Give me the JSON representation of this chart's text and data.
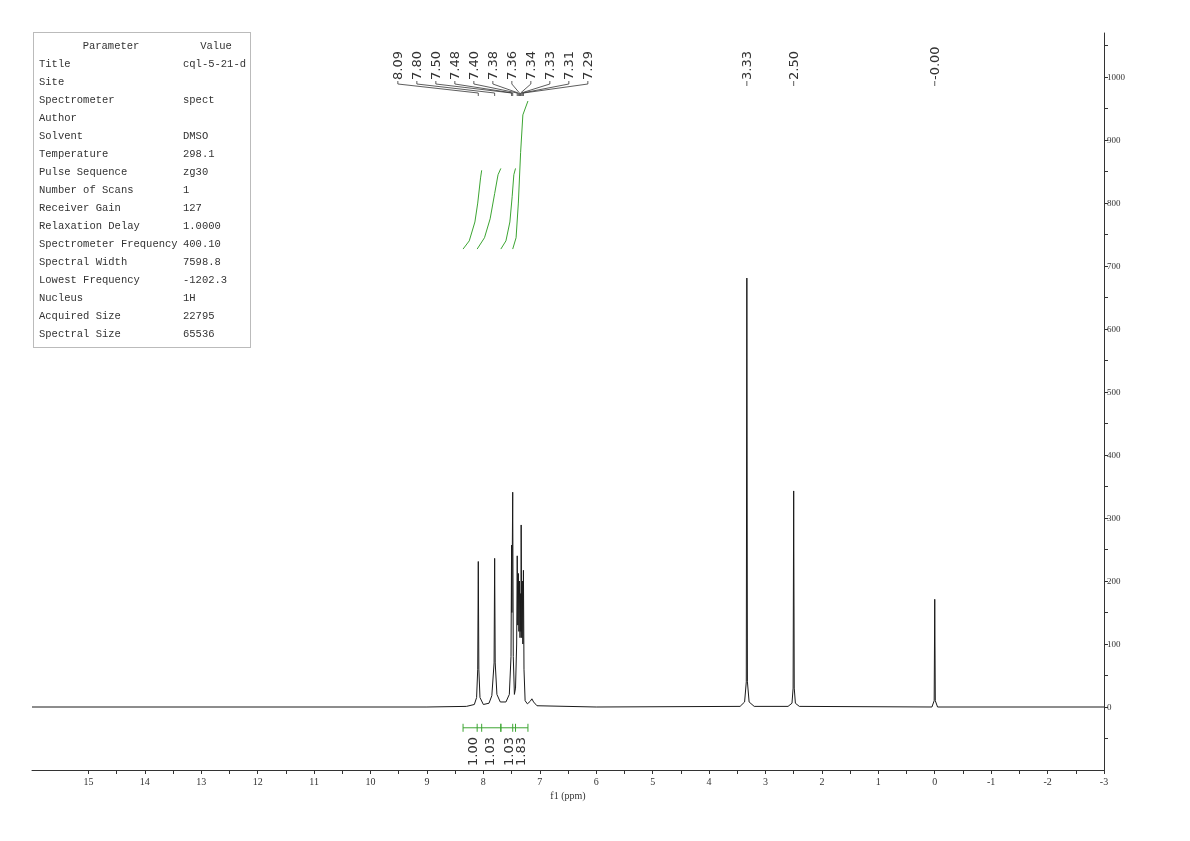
{
  "chart_data": [
    {
      "type": "other",
      "annotations": [
        "Parameter",
        "Value",
        "Title",
        "cql-5-21-d",
        "Site",
        null,
        "Spectrometer",
        "spect",
        "Author",
        null,
        "Solvent",
        "DMSO",
        "Temperature",
        "298.1",
        "Pulse Sequence",
        "zg30",
        "Number of Scans",
        "1",
        "Receiver Gain",
        "127",
        "Relaxation Delay",
        "1.0000",
        "Spectrometer Frequency",
        "400.10",
        "Spectral Width",
        "7598.8",
        "Lowest Frequency",
        "-1202.3",
        "Nucleus",
        "1H",
        "Acquired Size",
        "22795",
        "Spectral Size",
        "65536"
      ]
    },
    {
      "type": "line",
      "xlabel": "f1 (ppm)",
      "xlim": [
        16,
        -3
      ],
      "ylim": [
        -100,
        1070
      ],
      "marker": "none",
      "xticks": [
        15,
        {
          "value": 14.5,
          "label": null
        },
        14,
        {
          "value": 13.5,
          "label": null
        },
        13,
        {
          "value": 12.5,
          "label": null
        },
        12,
        {
          "value": 11.5,
          "label": null
        },
        11,
        {
          "value": 10.5,
          "label": null
        },
        10,
        {
          "value": 9.5,
          "label": null
        },
        9,
        {
          "value": 8.5,
          "label": null
        },
        8,
        {
          "value": 7.5,
          "label": null
        },
        7,
        {
          "value": 6.5,
          "label": null
        },
        6,
        {
          "value": 5.5,
          "label": null
        },
        5,
        {
          "value": 4.5,
          "label": null
        },
        4,
        {
          "value": 3.5,
          "label": null
        },
        3,
        {
          "value": 2.5,
          "label": null
        },
        2,
        {
          "value": 1.5,
          "label": null
        },
        1,
        {
          "value": 0.5,
          "label": null
        },
        0,
        {
          "value": -0.5,
          "label": null
        },
        -1,
        {
          "value": -1.5,
          "label": null
        },
        -2,
        {
          "value": -2.5,
          "label": null
        },
        -3
      ],
      "yticks": [
        {
          "value": -50,
          "label": null
        },
        0,
        {
          "value": 50,
          "label": null
        },
        100,
        {
          "value": 150,
          "label": null
        },
        200,
        {
          "value": 250,
          "label": null
        },
        300,
        {
          "value": 350,
          "label": null
        },
        400,
        {
          "value": 450,
          "label": null
        },
        500,
        {
          "value": 550,
          "label": null
        },
        600,
        {
          "value": 650,
          "label": null
        },
        700,
        {
          "value": 750,
          "label": null
        },
        800,
        {
          "value": 850,
          "label": null
        },
        900,
        {
          "value": 950,
          "label": null
        },
        1000,
        {
          "value": 1050,
          "label": null
        }
      ],
      "series": [
        {
          "color": "#1a1a1a",
          "x": [
            16,
            9,
            8.3,
            8.16,
            8.12,
            8.1,
            8.09,
            8.08,
            8.06,
            8.0,
            7.9,
            7.85,
            7.81,
            7.8,
            7.79,
            7.76,
            7.7,
            7.6,
            7.54,
            7.51,
            7.5,
            7.495,
            7.48,
            7.47,
            7.45,
            7.43,
            7.41,
            7.4,
            7.39,
            7.38,
            7.37,
            7.36,
            7.35,
            7.34,
            7.335,
            7.33,
            7.32,
            7.31,
            7.3,
            7.29,
            7.28,
            7.26,
            7.22,
            7.17,
            7.14,
            7.11,
            7.05,
            6,
            3.45,
            3.37,
            3.34,
            3.33,
            3.32,
            3.29,
            3.2,
            2.6,
            2.53,
            2.51,
            2.5,
            2.49,
            2.47,
            2.4,
            0.05,
            0.01,
            0,
            -0.01,
            -0.05,
            -3
          ],
          "values": [
            0,
            0,
            1,
            4,
            15,
            60,
            231,
            60,
            15,
            4,
            6,
            18,
            70,
            236,
            70,
            20,
            8,
            8,
            20,
            80,
            257,
            150,
            341,
            80,
            20,
            30,
            100,
            240,
            130,
            212,
            120,
            200,
            110,
            180,
            120,
            289,
            110,
            200,
            100,
            217,
            60,
            10,
            5,
            9,
            13,
            8,
            2,
            0,
            1,
            8,
            40,
            681,
            40,
            8,
            1,
            1,
            6,
            30,
            343,
            30,
            6,
            1,
            0,
            10,
            171,
            10,
            0,
            0
          ]
        },
        {
          "color": "#3ca532",
          "x": [
            8.36,
            8.25,
            8.15,
            8.1,
            8.05,
            8.03
          ],
          "values": [
            727,
            740,
            770,
            800,
            840,
            852
          ]
        },
        {
          "color": "#3ca532",
          "x": [
            8.11,
            7.98,
            7.88,
            7.8,
            7.74,
            7.69
          ],
          "values": [
            727,
            745,
            775,
            815,
            845,
            855
          ]
        },
        {
          "color": "#3ca532",
          "x": [
            7.69,
            7.6,
            7.53,
            7.49,
            7.46,
            7.43
          ],
          "values": [
            727,
            740,
            770,
            810,
            845,
            855
          ]
        },
        {
          "color": "#3ca532",
          "x": [
            7.48,
            7.42,
            7.38,
            7.34,
            7.3,
            7.21
          ],
          "values": [
            727,
            745,
            800,
            880,
            940,
            962
          ]
        }
      ],
      "annotations": [
        "8.09",
        "7.80",
        "7.50",
        "7.48",
        "7.40",
        "7.38",
        "7.36",
        "7.34",
        "7.33",
        "7.31",
        "7.29",
        "3.33",
        "2.50",
        "-0.00",
        "1.00",
        "1.03",
        "1.03",
        "1.83"
      ]
    }
  ]
}
